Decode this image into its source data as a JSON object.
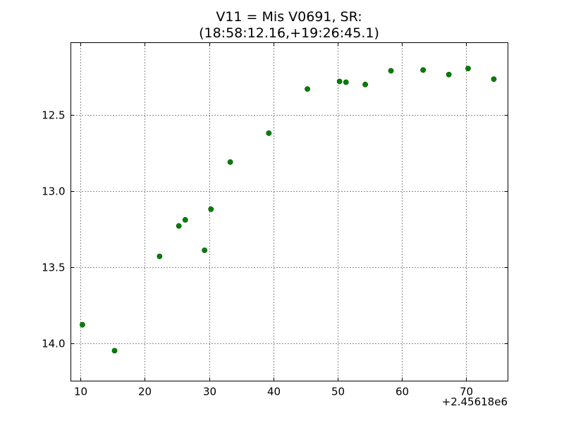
{
  "chart_data": {
    "type": "scatter",
    "title": "V11 = Mis V0691, SR:",
    "subtitle": "(18:58:12.16,+19:26:45.1)",
    "xlabel": "",
    "ylabel": "",
    "x_offset_label": "+2.45618e6",
    "xlim": [
      8.5,
      76.5
    ],
    "ylim": [
      14.25,
      12.025
    ],
    "y_inverted": true,
    "x_ticks": [
      10,
      20,
      30,
      40,
      50,
      60,
      70
    ],
    "x_tick_labels": [
      "10",
      "20",
      "30",
      "40",
      "50",
      "60",
      "70"
    ],
    "y_ticks": [
      12.5,
      13.0,
      13.5,
      14.0
    ],
    "y_tick_labels": [
      "12.5",
      "13.0",
      "13.5",
      "14.0"
    ],
    "grid": true,
    "marker_color": "#008000",
    "series": [
      {
        "name": "",
        "points": [
          {
            "x": 10.3,
            "y": 13.88
          },
          {
            "x": 15.3,
            "y": 14.05
          },
          {
            "x": 22.3,
            "y": 13.43
          },
          {
            "x": 25.3,
            "y": 13.23
          },
          {
            "x": 26.3,
            "y": 13.19
          },
          {
            "x": 29.3,
            "y": 13.39
          },
          {
            "x": 30.3,
            "y": 13.12
          },
          {
            "x": 33.3,
            "y": 12.81
          },
          {
            "x": 39.3,
            "y": 12.62
          },
          {
            "x": 45.3,
            "y": 12.33
          },
          {
            "x": 50.3,
            "y": 12.28
          },
          {
            "x": 51.3,
            "y": 12.285
          },
          {
            "x": 54.3,
            "y": 12.3
          },
          {
            "x": 58.3,
            "y": 12.21
          },
          {
            "x": 63.3,
            "y": 12.205
          },
          {
            "x": 67.3,
            "y": 12.235
          },
          {
            "x": 70.3,
            "y": 12.195
          },
          {
            "x": 74.3,
            "y": 12.265
          }
        ]
      }
    ]
  }
}
